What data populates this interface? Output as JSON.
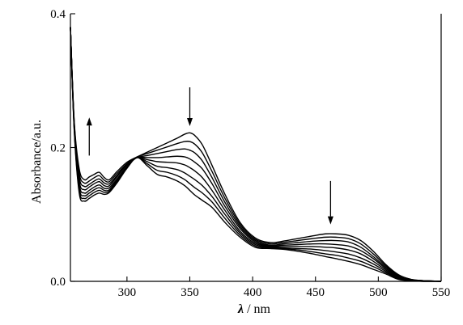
{
  "chart_data": {
    "type": "line",
    "title": "",
    "xlabel_symbol": "λ",
    "xlabel_unit": " / nm",
    "ylabel": "Absorbance/a.u.",
    "xlim": [
      255,
      550
    ],
    "ylim": [
      0,
      0.4
    ],
    "x_ticks": [
      {
        "value": 300,
        "label": "300"
      },
      {
        "value": 350,
        "label": "350"
      },
      {
        "value": 400,
        "label": "400"
      },
      {
        "value": 450,
        "label": "450"
      },
      {
        "value": 500,
        "label": "500"
      },
      {
        "value": 550,
        "label": "550"
      }
    ],
    "y_ticks": [
      {
        "value": 0.0,
        "label": "0.0"
      },
      {
        "value": 0.2,
        "label": "0.2"
      },
      {
        "value": 0.4,
        "label": "0.4"
      }
    ],
    "arrows": [
      {
        "x": 270,
        "y_from": 0.188,
        "y_to": 0.245,
        "direction": "up"
      },
      {
        "x": 350,
        "y_from": 0.29,
        "y_to": 0.232,
        "direction": "down"
      },
      {
        "x": 462,
        "y_from": 0.15,
        "y_to": 0.085,
        "direction": "down"
      }
    ],
    "series": [
      {
        "x": [
          255,
          258,
          262,
          266,
          270,
          274,
          278,
          282,
          286,
          292,
          300,
          308,
          316,
          324,
          332,
          340,
          346,
          350,
          354,
          360,
          368,
          378,
          390,
          402,
          414,
          424,
          436,
          448,
          458,
          466,
          476,
          486,
          496,
          506,
          516,
          526,
          536,
          550
        ],
        "y": [
          0.38,
          0.24,
          0.168,
          0.152,
          0.156,
          0.16,
          0.163,
          0.155,
          0.152,
          0.164,
          0.178,
          0.186,
          0.193,
          0.2,
          0.207,
          0.214,
          0.22,
          0.222,
          0.218,
          0.204,
          0.172,
          0.13,
          0.088,
          0.065,
          0.058,
          0.06,
          0.064,
          0.068,
          0.071,
          0.071,
          0.069,
          0.061,
          0.045,
          0.025,
          0.01,
          0.003,
          0.001,
          0.0
        ]
      },
      {
        "x": [
          255,
          258,
          262,
          266,
          270,
          274,
          278,
          282,
          286,
          292,
          300,
          308,
          316,
          324,
          332,
          340,
          346,
          350,
          354,
          360,
          368,
          378,
          390,
          402,
          414,
          424,
          436,
          448,
          458,
          466,
          476,
          486,
          496,
          506,
          516,
          526,
          536,
          550
        ],
        "y": [
          0.38,
          0.238,
          0.162,
          0.147,
          0.15,
          0.155,
          0.158,
          0.151,
          0.149,
          0.161,
          0.176,
          0.186,
          0.191,
          0.196,
          0.201,
          0.206,
          0.209,
          0.209,
          0.205,
          0.192,
          0.163,
          0.124,
          0.085,
          0.063,
          0.056,
          0.058,
          0.061,
          0.064,
          0.066,
          0.066,
          0.064,
          0.056,
          0.041,
          0.023,
          0.009,
          0.003,
          0.001,
          0.0
        ]
      },
      {
        "x": [
          255,
          258,
          262,
          266,
          270,
          274,
          278,
          282,
          286,
          292,
          300,
          308,
          316,
          324,
          332,
          340,
          346,
          350,
          354,
          360,
          368,
          378,
          390,
          402,
          414,
          424,
          436,
          448,
          458,
          466,
          476,
          486,
          496,
          506,
          516,
          526,
          536,
          550
        ],
        "y": [
          0.38,
          0.236,
          0.156,
          0.142,
          0.145,
          0.15,
          0.153,
          0.147,
          0.146,
          0.158,
          0.175,
          0.185,
          0.188,
          0.191,
          0.194,
          0.197,
          0.198,
          0.196,
          0.192,
          0.18,
          0.154,
          0.118,
          0.082,
          0.061,
          0.054,
          0.056,
          0.058,
          0.06,
          0.061,
          0.061,
          0.059,
          0.051,
          0.037,
          0.021,
          0.008,
          0.002,
          0.001,
          0.0
        ]
      },
      {
        "x": [
          255,
          258,
          262,
          266,
          270,
          274,
          278,
          282,
          286,
          292,
          300,
          308,
          316,
          324,
          332,
          340,
          346,
          350,
          354,
          360,
          368,
          378,
          390,
          402,
          414,
          424,
          436,
          448,
          458,
          466,
          476,
          486,
          496,
          506,
          516,
          526,
          536,
          550
        ],
        "y": [
          0.38,
          0.234,
          0.15,
          0.137,
          0.141,
          0.146,
          0.149,
          0.143,
          0.143,
          0.156,
          0.174,
          0.185,
          0.185,
          0.185,
          0.186,
          0.187,
          0.186,
          0.183,
          0.178,
          0.168,
          0.145,
          0.112,
          0.079,
          0.059,
          0.053,
          0.054,
          0.055,
          0.056,
          0.056,
          0.055,
          0.053,
          0.046,
          0.034,
          0.019,
          0.007,
          0.002,
          0.001,
          0.0
        ]
      },
      {
        "x": [
          255,
          258,
          262,
          266,
          270,
          274,
          278,
          282,
          286,
          292,
          300,
          308,
          316,
          324,
          332,
          340,
          346,
          350,
          354,
          360,
          368,
          378,
          390,
          402,
          414,
          424,
          436,
          448,
          458,
          466,
          476,
          486,
          496,
          506,
          516,
          526,
          536,
          550
        ],
        "y": [
          0.38,
          0.232,
          0.145,
          0.132,
          0.136,
          0.141,
          0.144,
          0.139,
          0.14,
          0.153,
          0.172,
          0.185,
          0.182,
          0.179,
          0.178,
          0.177,
          0.174,
          0.17,
          0.165,
          0.155,
          0.135,
          0.106,
          0.075,
          0.057,
          0.052,
          0.052,
          0.052,
          0.052,
          0.051,
          0.05,
          0.047,
          0.041,
          0.03,
          0.017,
          0.006,
          0.002,
          0.001,
          0.0
        ]
      },
      {
        "x": [
          255,
          258,
          262,
          266,
          270,
          274,
          278,
          282,
          286,
          292,
          300,
          308,
          316,
          324,
          332,
          340,
          346,
          350,
          354,
          360,
          368,
          378,
          390,
          402,
          414,
          424,
          436,
          448,
          458,
          466,
          476,
          486,
          496,
          506,
          516,
          526,
          536,
          550
        ],
        "y": [
          0.38,
          0.23,
          0.14,
          0.128,
          0.132,
          0.137,
          0.14,
          0.136,
          0.137,
          0.151,
          0.171,
          0.185,
          0.179,
          0.172,
          0.17,
          0.167,
          0.162,
          0.157,
          0.152,
          0.143,
          0.126,
          0.1,
          0.072,
          0.055,
          0.051,
          0.05,
          0.049,
          0.048,
          0.046,
          0.044,
          0.041,
          0.035,
          0.026,
          0.015,
          0.005,
          0.002,
          0.001,
          0.0
        ]
      },
      {
        "x": [
          255,
          258,
          262,
          266,
          270,
          274,
          278,
          282,
          286,
          292,
          300,
          308,
          316,
          324,
          332,
          340,
          346,
          350,
          354,
          360,
          368,
          378,
          390,
          402,
          414,
          424,
          436,
          448,
          458,
          466,
          476,
          486,
          496,
          506,
          516,
          526,
          536,
          550
        ],
        "y": [
          0.38,
          0.228,
          0.136,
          0.124,
          0.128,
          0.133,
          0.136,
          0.133,
          0.135,
          0.149,
          0.17,
          0.185,
          0.176,
          0.166,
          0.163,
          0.158,
          0.152,
          0.146,
          0.14,
          0.132,
          0.118,
          0.094,
          0.069,
          0.053,
          0.05,
          0.049,
          0.047,
          0.044,
          0.041,
          0.039,
          0.035,
          0.03,
          0.022,
          0.013,
          0.004,
          0.001,
          0.0,
          0.0
        ]
      },
      {
        "x": [
          255,
          258,
          262,
          266,
          270,
          274,
          278,
          282,
          286,
          292,
          300,
          308,
          316,
          324,
          332,
          340,
          346,
          350,
          354,
          360,
          368,
          378,
          390,
          402,
          414,
          424,
          436,
          448,
          458,
          466,
          476,
          486,
          496,
          506,
          516,
          526,
          536,
          550
        ],
        "y": [
          0.38,
          0.226,
          0.132,
          0.12,
          0.124,
          0.129,
          0.132,
          0.13,
          0.133,
          0.147,
          0.169,
          0.185,
          0.173,
          0.16,
          0.156,
          0.15,
          0.143,
          0.136,
          0.129,
          0.121,
          0.11,
          0.088,
          0.066,
          0.051,
          0.049,
          0.048,
          0.045,
          0.041,
          0.037,
          0.034,
          0.03,
          0.025,
          0.018,
          0.011,
          0.003,
          0.001,
          0.0,
          0.0
        ]
      }
    ]
  }
}
